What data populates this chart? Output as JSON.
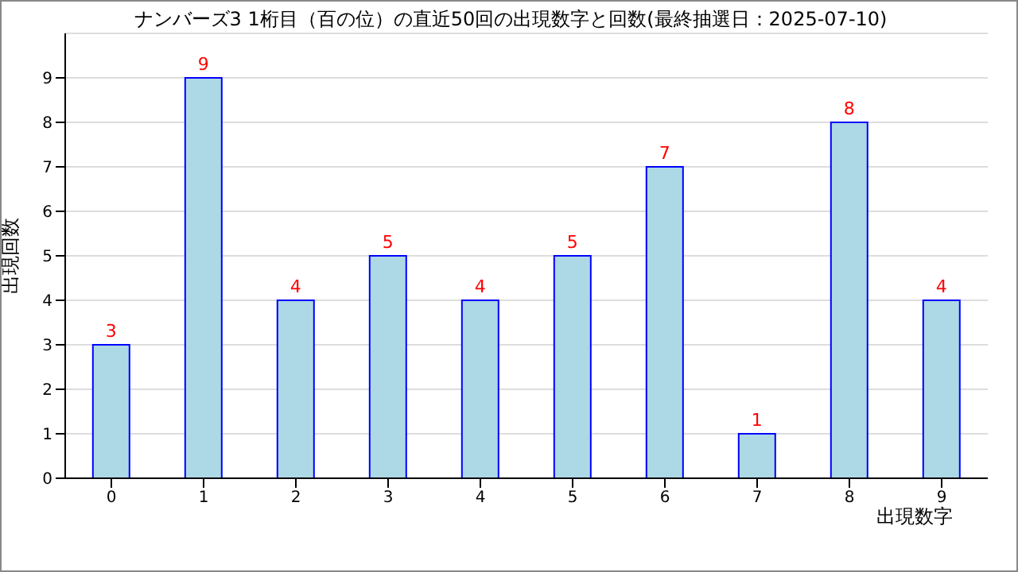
{
  "chart_data": {
    "type": "bar",
    "title": "ナンバーズ3 1桁目（百の位）の直近50回の出現数字と回数(最終抽選日：2025-07-10)",
    "xlabel": "出現数字",
    "ylabel": "出現回数",
    "categories": [
      "0",
      "1",
      "2",
      "3",
      "4",
      "5",
      "6",
      "7",
      "8",
      "9"
    ],
    "values": [
      3,
      9,
      4,
      5,
      4,
      5,
      7,
      1,
      8,
      4
    ],
    "color": "#add8e6",
    "ylim": [
      0,
      10
    ],
    "yticks": [
      0,
      1,
      2,
      3,
      4,
      5,
      6,
      7,
      8,
      9
    ],
    "grid": "y",
    "data_labels": true
  }
}
